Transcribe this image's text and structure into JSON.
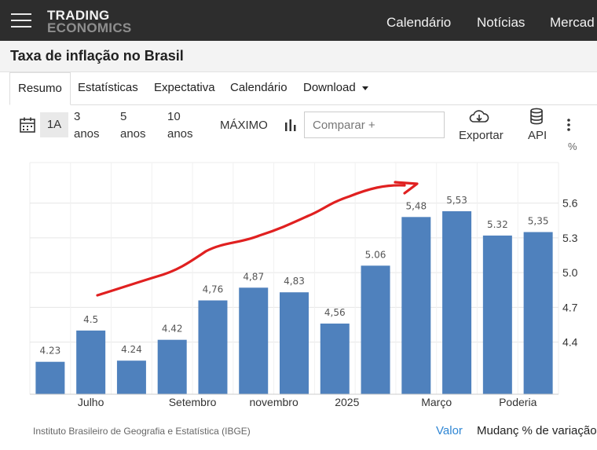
{
  "brand": {
    "line1": "TRADING",
    "line2": "ECONOMICS"
  },
  "nav": {
    "items": [
      "Calendário",
      "Notícias",
      "Mercad"
    ]
  },
  "page": {
    "title": "Taxa de inflação no Brasil"
  },
  "tabs": {
    "items": [
      "Resumo",
      "Estatísticas",
      "Expectativa",
      "Calendário",
      "Download"
    ]
  },
  "toolbar": {
    "one_year": "1A",
    "ranges": [
      {
        "n": "3",
        "unit": "anos"
      },
      {
        "n": "5",
        "unit": "anos"
      },
      {
        "n": "10",
        "unit": "anos"
      }
    ],
    "max": "MÁXIMO",
    "compare_placeholder": "Comparar +",
    "export": "Exportar",
    "api": "API"
  },
  "footer": {
    "source": "Instituto Brasileiro de Geografia e Estatística (IBGE)",
    "valor": "Valor",
    "mudanc": "Mudanç % de variação"
  },
  "colors": {
    "bar": "#4f81bd",
    "annotation": "#e02020",
    "link": "#2f86d4"
  },
  "chart_data": {
    "type": "bar",
    "unit_label": "%",
    "y_axis_side": "right",
    "grid": true,
    "ylim": [
      3.95,
      5.95
    ],
    "yticks": [
      "5.6",
      "5.3",
      "5.0",
      "4.7",
      "4.4"
    ],
    "ytick_values": [
      5.6,
      5.3,
      5.0,
      4.7,
      4.4
    ],
    "values": [
      4.23,
      4.5,
      4.24,
      4.42,
      4.76,
      4.87,
      4.83,
      4.56,
      5.06,
      5.48,
      5.53,
      5.32,
      5.35
    ],
    "data_labels": [
      "4.23",
      "4.5",
      "4.24",
      "4.42",
      "4,76",
      "4,87",
      "4,83",
      "4,56",
      "5.06",
      "5,48",
      "5,53",
      "5.32",
      "5,35"
    ],
    "x_tick_labels": [
      {
        "index": 1,
        "label": "Julho"
      },
      {
        "index": 3.5,
        "label": "Setembro"
      },
      {
        "index": 5.5,
        "label": "novembro"
      },
      {
        "index": 7.3,
        "label": "2025"
      },
      {
        "index": 9.5,
        "label": "Março"
      },
      {
        "index": 11.5,
        "label": "Poderia"
      }
    ]
  }
}
